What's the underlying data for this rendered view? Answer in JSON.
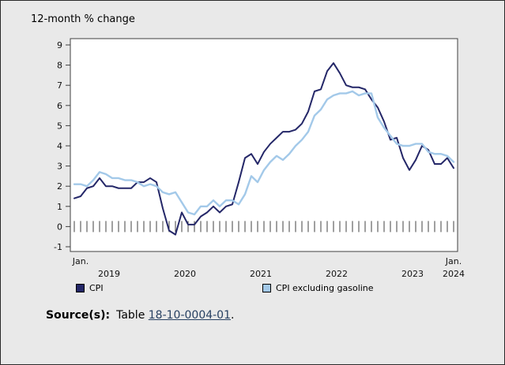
{
  "title": "12-month % change",
  "legend": {
    "items": [
      {
        "label": "CPI",
        "color": "#242768"
      },
      {
        "label": "CPI excluding gasoline",
        "color": "#a3c9e9"
      }
    ]
  },
  "source": {
    "label": "Source(s):",
    "pre": "Table ",
    "link": "18-10-0004-01",
    "post": "."
  },
  "chart_data": {
    "type": "line",
    "title": "12-month % change",
    "x_range": [
      "2019-01",
      "2024-01"
    ],
    "x_unit": "month",
    "x_end_label_left": "Jan.",
    "x_end_label_right": "Jan.",
    "x_end_year_right": "2024",
    "x_tick_years": [
      "2019",
      "2020",
      "2021",
      "2022",
      "2023"
    ],
    "ylim": [
      -1,
      9
    ],
    "y_ticks": [
      9,
      8,
      7,
      6,
      5,
      4,
      3,
      2,
      1,
      0,
      -1
    ],
    "grid": false,
    "legend_position": "bottom",
    "series": [
      {
        "name": "CPI",
        "color": "#242768",
        "width": 2,
        "values": [
          1.4,
          1.5,
          1.9,
          2.0,
          2.4,
          2.0,
          2.0,
          1.9,
          1.9,
          1.9,
          2.2,
          2.2,
          2.4,
          2.2,
          0.9,
          -0.2,
          -0.4,
          0.7,
          0.1,
          0.1,
          0.5,
          0.7,
          1.0,
          0.7,
          1.0,
          1.1,
          2.2,
          3.4,
          3.6,
          3.1,
          3.7,
          4.1,
          4.4,
          4.7,
          4.7,
          4.8,
          5.1,
          5.7,
          6.7,
          6.8,
          7.7,
          8.1,
          7.6,
          7.0,
          6.9,
          6.9,
          6.8,
          6.3,
          5.9,
          5.2,
          4.3,
          4.4,
          3.4,
          2.8,
          3.3,
          4.0,
          3.8,
          3.1,
          3.1,
          3.4,
          2.9
        ]
      },
      {
        "name": "CPI excluding gasoline",
        "color": "#a3c9e9",
        "width": 2.4,
        "values": [
          2.1,
          2.1,
          2.0,
          2.3,
          2.7,
          2.6,
          2.4,
          2.4,
          2.3,
          2.3,
          2.2,
          2.0,
          2.1,
          2.0,
          1.7,
          1.6,
          1.7,
          1.2,
          0.7,
          0.6,
          1.0,
          1.0,
          1.3,
          1.0,
          1.3,
          1.3,
          1.1,
          1.6,
          2.5,
          2.2,
          2.8,
          3.2,
          3.5,
          3.3,
          3.6,
          4.0,
          4.3,
          4.7,
          5.5,
          5.8,
          6.3,
          6.5,
          6.6,
          6.6,
          6.7,
          6.5,
          6.6,
          6.6,
          5.4,
          4.9,
          4.5,
          4.1,
          4.0,
          4.0,
          4.1,
          4.1,
          3.7,
          3.6,
          3.6,
          3.5,
          3.2
        ]
      }
    ]
  }
}
